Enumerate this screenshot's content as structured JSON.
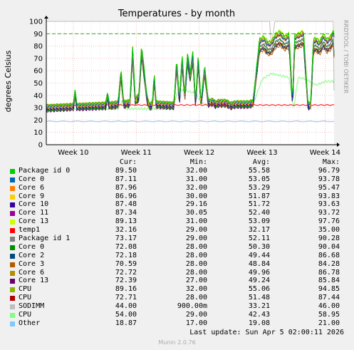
{
  "chart_data": {
    "type": "line",
    "title": "Temperatures - by month",
    "ylabel": "degrees Celsius",
    "side_text": "RRDTOOL / TOBI OETIKER",
    "ylim": [
      0,
      100
    ],
    "yticks": [
      0,
      10,
      20,
      30,
      40,
      50,
      60,
      70,
      80,
      90,
      100
    ],
    "xlim": [
      0,
      32
    ],
    "xticks": [
      {
        "label": "Week 10",
        "x": 3
      },
      {
        "label": "Week 11",
        "x": 10
      },
      {
        "label": "Week 12",
        "x": 17
      },
      {
        "label": "Week 13",
        "x": 24
      },
      {
        "label": "Week 14",
        "x": 31
      }
    ],
    "warning_line": 90,
    "grid": true,
    "columns": [
      "Cur:",
      "Min:",
      "Avg:",
      "Max:"
    ],
    "series": [
      {
        "name": "Package id 0",
        "color": "#00cc00",
        "cur": "89.50",
        "min": "32.00",
        "avg": "55.58",
        "max": "96.79"
      },
      {
        "name": "Core 0",
        "color": "#0066b3",
        "cur": "87.11",
        "min": "31.00",
        "avg": "53.05",
        "max": "93.78"
      },
      {
        "name": "Core 6",
        "color": "#ff8000",
        "cur": "87.96",
        "min": "32.00",
        "avg": "53.29",
        "max": "95.47"
      },
      {
        "name": "Core 9",
        "color": "#ffcc00",
        "cur": "86.96",
        "min": "30.00",
        "avg": "51.87",
        "max": "93.83"
      },
      {
        "name": "Core 10",
        "color": "#330099",
        "cur": "87.48",
        "min": "29.16",
        "avg": "51.72",
        "max": "93.63"
      },
      {
        "name": "Core 11",
        "color": "#990099",
        "cur": "87.34",
        "min": "30.05",
        "avg": "52.40",
        "max": "93.72"
      },
      {
        "name": "Core 13",
        "color": "#ccff00",
        "cur": "89.13",
        "min": "31.00",
        "avg": "53.09",
        "max": "97.76"
      },
      {
        "name": "temp1",
        "color": "#ff0000",
        "cur": "32.16",
        "min": "29.00",
        "avg": "32.17",
        "max": "35.00"
      },
      {
        "name": "Package id 1",
        "color": "#808080",
        "cur": "73.17",
        "min": "29.00",
        "avg": "52.11",
        "max": "90.28"
      },
      {
        "name": "Core 0",
        "color": "#008f00",
        "cur": "72.08",
        "min": "28.00",
        "avg": "50.30",
        "max": "90.04"
      },
      {
        "name": "Core 2",
        "color": "#00487d",
        "cur": "72.18",
        "min": "28.00",
        "avg": "49.44",
        "max": "86.68"
      },
      {
        "name": "Core 3",
        "color": "#b35a00",
        "cur": "70.59",
        "min": "28.00",
        "avg": "48.84",
        "max": "84.28"
      },
      {
        "name": "Core 6",
        "color": "#b38f00",
        "cur": "72.72",
        "min": "28.00",
        "avg": "49.96",
        "max": "86.78"
      },
      {
        "name": "Core 13",
        "color": "#6b006b",
        "cur": "72.39",
        "min": "27.00",
        "avg": "49.24",
        "max": "85.84"
      },
      {
        "name": "CPU",
        "color": "#8fb300",
        "cur": "89.16",
        "min": "32.00",
        "avg": "55.06",
        "max": "94.85"
      },
      {
        "name": "CPU",
        "color": "#b30000",
        "cur": "72.71",
        "min": "28.00",
        "avg": "51.48",
        "max": "87.44"
      },
      {
        "name": "SODIMM",
        "color": "#bebebe",
        "cur": "44.00",
        "min": "900.00m",
        "avg": "33.21",
        "max": "46.00"
      },
      {
        "name": "CPU",
        "color": "#80ff80",
        "cur": "54.00",
        "min": "29.00",
        "avg": "42.43",
        "max": "58.95"
      },
      {
        "name": "Other",
        "color": "#80c9ff",
        "cur": "18.87",
        "min": "17.00",
        "avg": "19.08",
        "max": "21.00"
      }
    ],
    "hot_profile": {
      "x": [
        0,
        3.0,
        3.2,
        3.4,
        6.6,
        6.8,
        7.0,
        8.0,
        8.3,
        8.6,
        9.3,
        9.6,
        9.9,
        10.3,
        10.6,
        11.2,
        11.5,
        11.8,
        12.0,
        12.2,
        14.2,
        14.5,
        14.8,
        15.1,
        15.4,
        15.7,
        16.0,
        16.3,
        16.6,
        16.9,
        17.2,
        17.6,
        18.0,
        18.5,
        18.8,
        19.2,
        19.6,
        20.0,
        20.5,
        21.0,
        21.5,
        22.0,
        22.5,
        23.0,
        23.4,
        23.7,
        24.2,
        24.6,
        25.0,
        25.5,
        26.0,
        26.5,
        27.0,
        27.4,
        27.6,
        28.0,
        28.6,
        29.1,
        29.4,
        29.7,
        30.0,
        30.4,
        30.8,
        31.2,
        31.6,
        32.0
      ],
      "y": [
        32,
        33,
        44,
        33,
        34,
        42,
        34,
        35,
        60,
        35,
        36,
        77,
        37,
        41,
        78,
        39,
        33,
        35,
        57,
        35,
        34,
        68,
        36,
        71,
        40,
        72,
        57,
        73,
        35,
        71,
        34,
        63,
        36,
        37,
        35,
        36,
        36,
        36,
        34,
        35,
        35,
        35,
        35,
        36,
        62,
        82,
        84,
        80,
        80,
        86,
        88,
        84,
        86,
        34,
        85,
        86,
        88,
        34,
        34,
        82,
        83,
        80,
        86,
        82,
        84,
        90
      ]
    },
    "cool_profile": {
      "x": [
        0,
        8.0,
        8.4,
        8.8,
        14.0,
        14.4,
        14.8,
        16.6,
        17.2,
        18.0,
        23.0,
        23.6,
        24.0,
        25.0,
        27.0,
        27.5,
        28.0,
        29.0,
        30.0,
        31.0,
        32.0
      ],
      "y": [
        30,
        30,
        34,
        30,
        30,
        36,
        40,
        38,
        33,
        32,
        32,
        40,
        45,
        48,
        46,
        30,
        46,
        45,
        42,
        44,
        44
      ]
    },
    "other_profile": {
      "x": [
        0,
        8,
        16,
        24,
        32
      ],
      "y": [
        19,
        19,
        18.5,
        19,
        19
      ]
    }
  },
  "last_update": "Last update: Sun Apr  5 02:00:11 2026",
  "version": "Munin 2.0.76"
}
